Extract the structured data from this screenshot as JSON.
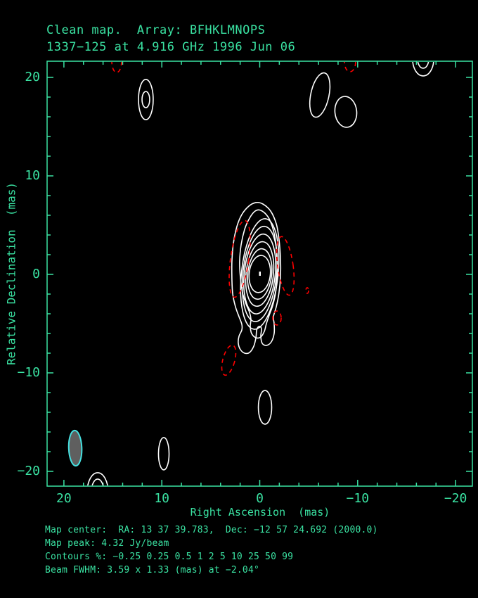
{
  "header": {
    "line1": "Clean map.  Array: BFHKLMNOPS",
    "line2": "1337−125 at 4.916 GHz 1996 Jun 06"
  },
  "footer": {
    "lines": [
      "Map center:  RA: 13 37 39.783,  Dec: −12 57 24.692 (2000.0)",
      "Map peak: 4.32 Jy/beam",
      "Contours %: −0.25 0.25 0.5 1 2 5 10 25 50 99",
      "Beam FWHM: 3.59 x 1.33 (mas) at −2.04°"
    ]
  },
  "colors": {
    "green": "#3ae2a2",
    "contour_positive": "#ffffff",
    "contour_negative": "#ff0000",
    "beam_fill": "#5f5f5f",
    "beam_stroke": "#45e0e0",
    "background": "#000000"
  },
  "chart_data": {
    "type": "contour_map",
    "title": "Clean map.  Array: BFHKLMNOPS",
    "source_name": "1337−125",
    "frequency": "4.916 GHz",
    "epoch": "1996 Jun 06",
    "map_peak_jy_per_beam": 4.32,
    "contour_levels_percent": [
      -0.25,
      0.25,
      0.5,
      1,
      2,
      5,
      10,
      25,
      50,
      99
    ],
    "beam_fwhm_mas": [
      3.59,
      1.33
    ],
    "beam_position_angle_deg": -2.04,
    "axes": {
      "x": {
        "label": "Right Ascension  (mas)",
        "ticks": [
          {
            "v": 20,
            "label": "20"
          },
          {
            "v": 10,
            "label": "10"
          },
          {
            "v": 0,
            "label": "0"
          },
          {
            "v": -10,
            "label": "−10"
          },
          {
            "v": -20,
            "label": "−20"
          }
        ],
        "minor_step": 2,
        "range": [
          21.7,
          -21.7
        ]
      },
      "y": {
        "label": "Relative Declination  (mas)",
        "ticks": [
          {
            "v": 20,
            "label": "20"
          },
          {
            "v": 10,
            "label": "10"
          },
          {
            "v": 0,
            "label": "0"
          },
          {
            "v": -10,
            "label": "−10"
          },
          {
            "v": -20,
            "label": "−20"
          }
        ],
        "minor_step": 2,
        "range": [
          -21.5,
          21.6
        ]
      }
    },
    "peak_marker": {
      "ra": 0.0,
      "dec": 0.07
    },
    "features": {
      "central_outer_contours": [
        {
          "level": 0.25,
          "points": [
            [
              -0.32,
              7.14
            ],
            [
              -1.11,
              6.43
            ],
            [
              -1.69,
              5.14
            ],
            [
              -1.97,
              3.57
            ],
            [
              -2.12,
              1.57
            ],
            [
              -2.12,
              -0.14
            ],
            [
              -1.97,
              -1.86
            ],
            [
              -1.69,
              -3.29
            ],
            [
              -1.4,
              -4.29
            ],
            [
              -1.47,
              -5.0
            ],
            [
              -1.47,
              -6.0
            ],
            [
              -1.18,
              -6.86
            ],
            [
              -0.68,
              -7.21
            ],
            [
              -0.25,
              -7.0
            ],
            [
              -0.11,
              -6.29
            ],
            [
              -0.18,
              -5.57
            ],
            [
              -0.04,
              -5.29
            ],
            [
              0.18,
              -5.36
            ],
            [
              0.32,
              -5.71
            ],
            [
              0.39,
              -6.43
            ],
            [
              0.61,
              -7.29
            ],
            [
              1.04,
              -7.93
            ],
            [
              1.54,
              -8.0
            ],
            [
              1.97,
              -7.64
            ],
            [
              2.19,
              -7.0
            ],
            [
              2.12,
              -6.29
            ],
            [
              1.83,
              -5.64
            ],
            [
              1.83,
              -5.07
            ],
            [
              2.12,
              -4.29
            ],
            [
              2.48,
              -3.29
            ],
            [
              2.76,
              -2.0
            ],
            [
              2.84,
              -0.43
            ],
            [
              2.84,
              1.29
            ],
            [
              2.69,
              3.14
            ],
            [
              2.33,
              4.86
            ],
            [
              1.83,
              6.07
            ],
            [
              1.11,
              6.93
            ],
            [
              0.39,
              7.29
            ]
          ]
        },
        {
          "level": 0.5,
          "points": [
            [
              -0.11,
              6.5
            ],
            [
              -0.83,
              5.86
            ],
            [
              -1.33,
              4.71
            ],
            [
              -1.62,
              3.29
            ],
            [
              -1.76,
              1.43
            ],
            [
              -1.76,
              -0.29
            ],
            [
              -1.62,
              -1.86
            ],
            [
              -1.33,
              -3.14
            ],
            [
              -0.97,
              -4.14
            ],
            [
              -0.68,
              -5.0
            ],
            [
              -0.47,
              -5.79
            ],
            [
              -0.11,
              -6.36
            ],
            [
              0.39,
              -6.43
            ],
            [
              0.83,
              -6.0
            ],
            [
              0.97,
              -5.29
            ],
            [
              0.9,
              -4.57
            ],
            [
              1.04,
              -3.86
            ],
            [
              1.4,
              -3.0
            ],
            [
              1.76,
              -1.86
            ],
            [
              1.97,
              -0.43
            ],
            [
              2.05,
              1.29
            ],
            [
              1.9,
              3.0
            ],
            [
              1.54,
              4.57
            ],
            [
              1.04,
              5.71
            ],
            [
              0.47,
              6.43
            ]
          ]
        }
      ],
      "central_ellipses": [
        {
          "level": 1,
          "ra": 0.0,
          "dec": 0.04,
          "rx": 1.87,
          "ry": 5.64,
          "rot": 6
        },
        {
          "level": 2,
          "ra": 0.0,
          "dec": 0.04,
          "rx": 1.72,
          "ry": 4.86,
          "rot": 6
        },
        {
          "level": 5,
          "ra": 0.0,
          "dec": 0.04,
          "rx": 1.58,
          "ry": 4.07,
          "rot": 6
        },
        {
          "level": 10,
          "ra": 0.0,
          "dec": 0.04,
          "rx": 1.4,
          "ry": 3.29,
          "rot": 6
        },
        {
          "level": 25,
          "ra": 0.0,
          "dec": 0.04,
          "rx": 1.22,
          "ry": 2.57,
          "rot": 6
        },
        {
          "level": 50,
          "ra": 0.0,
          "dec": 0.04,
          "rx": 1.08,
          "ry": 1.89,
          "rot": 6
        }
      ],
      "positive_blobs": [
        {
          "ra": 11.63,
          "dec": 17.75,
          "rx": 0.75,
          "ry": 2.04,
          "rot": 0
        },
        {
          "ra": 11.63,
          "dec": 17.75,
          "rx": 0.39,
          "ry": 0.82,
          "rot": 0
        },
        {
          "ra": -6.14,
          "dec": 18.21,
          "rx": 0.93,
          "ry": 2.29,
          "rot": 12
        },
        {
          "ra": -8.79,
          "dec": 16.5,
          "rx": 1.11,
          "ry": 1.57,
          "rot": -6
        },
        {
          "ra": -16.69,
          "dec": 21.86,
          "rx": 1.08,
          "ry": 1.71,
          "rot": 0
        },
        {
          "ra": -16.69,
          "dec": 21.86,
          "rx": 0.57,
          "ry": 0.93,
          "rot": 0
        },
        {
          "ra": -0.54,
          "dec": -13.5,
          "rx": 0.68,
          "ry": 1.71,
          "rot": 0
        },
        {
          "ra": 9.8,
          "dec": -18.21,
          "rx": 0.54,
          "ry": 1.64,
          "rot": 0
        },
        {
          "ra": 16.55,
          "dec": -22.14,
          "rx": 1.08,
          "ry": 2.0,
          "rot": 0
        },
        {
          "ra": 16.55,
          "dec": -22.14,
          "rx": 0.65,
          "ry": 1.36,
          "rot": 0
        }
      ],
      "negative_contours": [
        {
          "ra": 2.05,
          "dec": 1.57,
          "rx": 0.93,
          "ry": 3.93,
          "rot": 8
        },
        {
          "ra": -2.62,
          "dec": 0.86,
          "rx": 0.79,
          "ry": 3.0,
          "rot": -8
        },
        {
          "ra": 3.16,
          "dec": -8.71,
          "rx": 0.61,
          "ry": 1.57,
          "rot": 15
        },
        {
          "ra": -1.76,
          "dec": -4.43,
          "rx": 0.43,
          "ry": 0.71,
          "rot": 0
        },
        {
          "ra": -4.85,
          "dec": -1.64,
          "rx": 0.14,
          "ry": 0.29,
          "rot": 0
        },
        {
          "ra": 14.61,
          "dec": 21.64,
          "rx": 0.5,
          "ry": 1.14,
          "rot": 0
        },
        {
          "ra": -9.22,
          "dec": 21.57,
          "rx": 0.57,
          "ry": 1.0,
          "rot": 0
        }
      ],
      "beam": {
        "ra": 18.84,
        "dec": -17.64,
        "rx": 0.665,
        "ry": 1.795,
        "rot": -2.04
      }
    }
  }
}
